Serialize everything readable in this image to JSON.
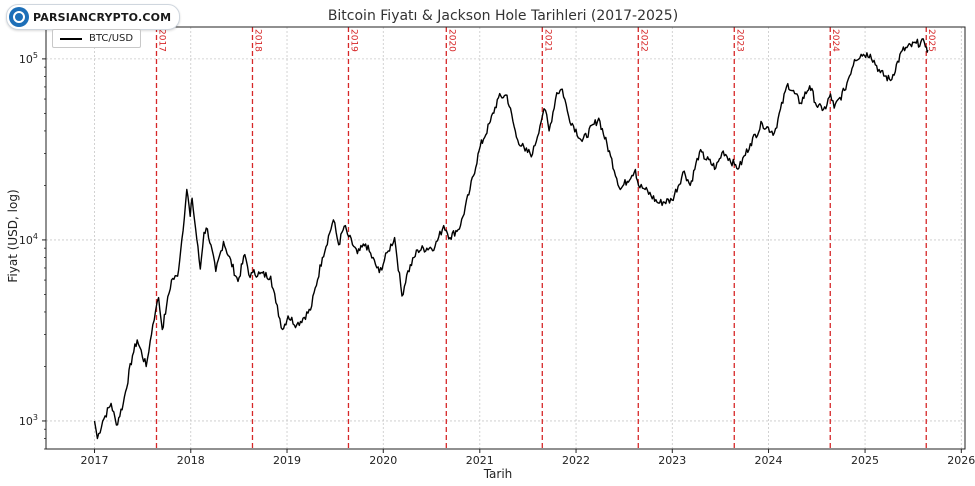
{
  "watermark": {
    "text": "PARSIANCRYPTO.COM"
  },
  "chart_data": {
    "type": "line",
    "title": "Bitcoin Fiyatı & Jackson Hole Tarihleri (2017-2025)",
    "xlabel": "Tarih",
    "ylabel": "Fiyat (USD, log)",
    "y_scale": "log",
    "ylim": [
      700,
      150000
    ],
    "xlim": [
      "2016-07-01",
      "2026-01-15"
    ],
    "grid": true,
    "legend_position": "top-left",
    "x_ticks": [
      "2017",
      "2018",
      "2019",
      "2020",
      "2021",
      "2022",
      "2023",
      "2024",
      "2025",
      "2026"
    ],
    "y_ticks": [
      {
        "value": 1000,
        "base": "10",
        "exp": "3"
      },
      {
        "value": 10000,
        "base": "10",
        "exp": "4"
      },
      {
        "value": 100000,
        "base": "10",
        "exp": "5"
      }
    ],
    "series": [
      {
        "name": "BTC/USD",
        "color": "#000000",
        "points": [
          [
            "2017-01-01",
            1000
          ],
          [
            "2017-01-12",
            800
          ],
          [
            "2017-02-01",
            1000
          ],
          [
            "2017-03-05",
            1250
          ],
          [
            "2017-03-25",
            950
          ],
          [
            "2017-04-20",
            1250
          ],
          [
            "2017-05-25",
            2300
          ],
          [
            "2017-06-12",
            2800
          ],
          [
            "2017-07-16",
            2000
          ],
          [
            "2017-08-10",
            3400
          ],
          [
            "2017-08-21",
            4100
          ],
          [
            "2017-09-01",
            4800
          ],
          [
            "2017-09-15",
            3200
          ],
          [
            "2017-10-01",
            4300
          ],
          [
            "2017-10-20",
            6000
          ],
          [
            "2017-11-12",
            6300
          ],
          [
            "2017-11-28",
            10000
          ],
          [
            "2017-12-17",
            19000
          ],
          [
            "2017-12-30",
            13500
          ],
          [
            "2018-01-06",
            17000
          ],
          [
            "2018-02-06",
            6900
          ],
          [
            "2018-02-20",
            11000
          ],
          [
            "2018-03-05",
            11500
          ],
          [
            "2018-04-06",
            6700
          ],
          [
            "2018-05-05",
            9800
          ],
          [
            "2018-06-29",
            5900
          ],
          [
            "2018-07-25",
            8300
          ],
          [
            "2018-08-14",
            6200
          ],
          [
            "2018-08-24",
            6600
          ],
          [
            "2018-09-20",
            6500
          ],
          [
            "2018-10-31",
            6300
          ],
          [
            "2018-11-20",
            4500
          ],
          [
            "2018-12-15",
            3200
          ],
          [
            "2019-01-05",
            3800
          ],
          [
            "2019-02-07",
            3400
          ],
          [
            "2019-03-31",
            4100
          ],
          [
            "2019-05-15",
            8000
          ],
          [
            "2019-06-26",
            12900
          ],
          [
            "2019-07-16",
            9400
          ],
          [
            "2019-08-06",
            11900
          ],
          [
            "2019-08-23",
            10400
          ],
          [
            "2019-09-25",
            8400
          ],
          [
            "2019-10-26",
            9500
          ],
          [
            "2019-12-17",
            6600
          ],
          [
            "2020-01-20",
            8700
          ],
          [
            "2020-02-13",
            10300
          ],
          [
            "2020-03-12",
            4900
          ],
          [
            "2020-03-30",
            6400
          ],
          [
            "2020-05-10",
            8800
          ],
          [
            "2020-07-15",
            9200
          ],
          [
            "2020-08-17",
            12000
          ],
          [
            "2020-08-27",
            11300
          ],
          [
            "2020-09-10",
            10300
          ],
          [
            "2020-10-20",
            12000
          ],
          [
            "2020-11-25",
            19000
          ],
          [
            "2021-01-03",
            33000
          ],
          [
            "2021-01-15",
            36000
          ],
          [
            "2021-02-10",
            45000
          ],
          [
            "2021-03-13",
            61000
          ],
          [
            "2021-04-14",
            63000
          ],
          [
            "2021-05-20",
            37000
          ],
          [
            "2021-06-22",
            31000
          ],
          [
            "2021-07-20",
            29800
          ],
          [
            "2021-08-27",
            49000
          ],
          [
            "2021-09-07",
            52000
          ],
          [
            "2021-09-21",
            40000
          ],
          [
            "2021-10-20",
            65000
          ],
          [
            "2021-11-10",
            68000
          ],
          [
            "2021-12-04",
            48000
          ],
          [
            "2022-01-24",
            35000
          ],
          [
            "2022-03-28",
            47000
          ],
          [
            "2022-05-12",
            29000
          ],
          [
            "2022-06-18",
            19000
          ],
          [
            "2022-08-14",
            24500
          ],
          [
            "2022-08-26",
            20000
          ],
          [
            "2022-09-20",
            19000
          ],
          [
            "2022-11-09",
            16000
          ],
          [
            "2022-12-31",
            16600
          ],
          [
            "2023-02-15",
            24000
          ],
          [
            "2023-03-10",
            20000
          ],
          [
            "2023-04-14",
            30500
          ],
          [
            "2023-06-15",
            25000
          ],
          [
            "2023-07-13",
            31000
          ],
          [
            "2023-08-25",
            26000
          ],
          [
            "2023-09-11",
            25000
          ],
          [
            "2023-10-24",
            34000
          ],
          [
            "2023-12-08",
            44000
          ],
          [
            "2024-01-23",
            39000
          ],
          [
            "2024-03-14",
            73000
          ],
          [
            "2024-05-01",
            57000
          ],
          [
            "2024-06-05",
            71000
          ],
          [
            "2024-07-05",
            54000
          ],
          [
            "2024-08-05",
            53000
          ],
          [
            "2024-08-23",
            64000
          ],
          [
            "2024-09-06",
            53500
          ],
          [
            "2024-10-15",
            67000
          ],
          [
            "2024-11-22",
            99000
          ],
          [
            "2024-12-17",
            106000
          ],
          [
            "2025-01-21",
            106000
          ],
          [
            "2025-02-28",
            84000
          ],
          [
            "2025-04-08",
            76000
          ],
          [
            "2025-05-22",
            111000
          ],
          [
            "2025-07-14",
            122000
          ],
          [
            "2025-08-14",
            123000
          ],
          [
            "2025-08-22",
            116000
          ],
          [
            "2025-08-27",
            112000
          ]
        ]
      }
    ],
    "events": [
      {
        "label": "2017",
        "date": "2017-08-24"
      },
      {
        "label": "2018",
        "date": "2018-08-23"
      },
      {
        "label": "2019",
        "date": "2019-08-22"
      },
      {
        "label": "2020",
        "date": "2020-08-27"
      },
      {
        "label": "2021",
        "date": "2021-08-26"
      },
      {
        "label": "2022",
        "date": "2022-08-25"
      },
      {
        "label": "2023",
        "date": "2023-08-24"
      },
      {
        "label": "2024",
        "date": "2024-08-22"
      },
      {
        "label": "2025",
        "date": "2025-08-21"
      }
    ],
    "event_color": "#d62728"
  }
}
